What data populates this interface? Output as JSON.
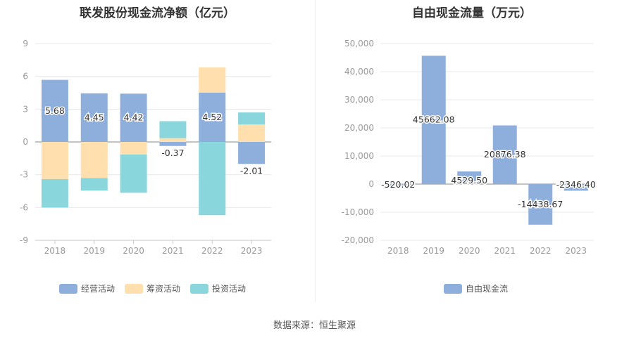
{
  "colors": {
    "operating": "#8eaedc",
    "financing": "#fedfad",
    "investing": "#8ad6dd",
    "fcf": "#8eaedc",
    "grid": "#e8e8e8",
    "axis": "#c8c8c8"
  },
  "chart_data": [
    {
      "type": "bar",
      "stacked": true,
      "title": "联发股份现金流净额（亿元）",
      "categories": [
        "2018",
        "2019",
        "2020",
        "2021",
        "2022",
        "2023"
      ],
      "ylim": [
        -9,
        9
      ],
      "yticks": [
        9,
        6,
        3,
        0,
        -3,
        -6,
        -9
      ],
      "grid": true,
      "legend_position": "bottom",
      "series": [
        {
          "name": "经营活动",
          "key": "operating",
          "values": [
            5.68,
            4.45,
            4.42,
            -0.37,
            4.52,
            -2.01
          ],
          "labels": [
            "5.68",
            "4.45",
            "4.42",
            "-0.37",
            "4.52",
            "-2.01"
          ]
        },
        {
          "name": "筹资活动",
          "key": "financing",
          "values": [
            -3.4,
            -3.3,
            -1.15,
            0.35,
            2.3,
            1.6
          ]
        },
        {
          "name": "投资活动",
          "key": "investing",
          "values": [
            -2.6,
            -1.15,
            -3.5,
            1.55,
            -6.7,
            1.1
          ]
        }
      ]
    },
    {
      "type": "bar",
      "title": "自由现金流量（万元）",
      "categories": [
        "2018",
        "2019",
        "2020",
        "2021",
        "2022",
        "2023"
      ],
      "ylim": [
        -20000,
        50000
      ],
      "yticks": [
        50000,
        40000,
        30000,
        20000,
        10000,
        0,
        -10000,
        -20000
      ],
      "ytick_labels": [
        "50,000",
        "40,000",
        "30,000",
        "20,000",
        "10,000",
        "0",
        "-10,000",
        "-20,000"
      ],
      "grid": true,
      "legend_position": "bottom",
      "series": [
        {
          "name": "自由现金流",
          "key": "fcf",
          "values": [
            -520.02,
            45662.08,
            4529.5,
            20876.38,
            -14438.67,
            -2346.4
          ],
          "labels": [
            "-520.02",
            "45662.08",
            "4529.50",
            "20876.38",
            "-14438.67",
            "-2346.40"
          ]
        }
      ]
    }
  ],
  "footer": {
    "source": "数据来源：恒生聚源"
  }
}
